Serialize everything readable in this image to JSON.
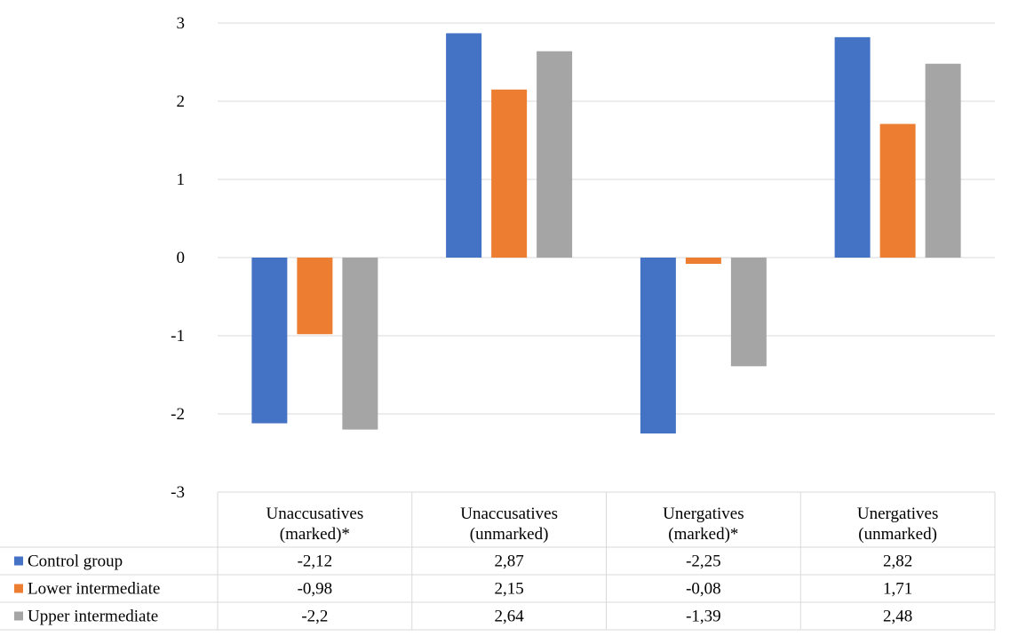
{
  "chart_data": {
    "type": "bar",
    "title": "",
    "xlabel": "",
    "ylabel": "",
    "ylim": [
      -3,
      3
    ],
    "yticks": [
      3,
      2,
      1,
      0,
      -1,
      -2,
      -3
    ],
    "grid": true,
    "legend": "data-table-left",
    "categories": [
      [
        "Unaccusatives",
        "(marked)*"
      ],
      [
        "Unaccusatives",
        "(unmarked)"
      ],
      [
        "Unergatives",
        "(marked)*"
      ],
      [
        "Unergatives",
        "(unmarked)"
      ]
    ],
    "series": [
      {
        "name": "Control group",
        "color": "#4472C4",
        "values": [
          -2.12,
          2.87,
          -2.25,
          2.82
        ],
        "labels": [
          "-2,12",
          "2,87",
          "-2,25",
          "2,82"
        ]
      },
      {
        "name": "Lower intermediate",
        "color": "#ED7D31",
        "values": [
          -0.98,
          2.15,
          -0.08,
          1.71
        ],
        "labels": [
          "-0,98",
          "2,15",
          "-0,08",
          "1,71"
        ]
      },
      {
        "name": "Upper intermediate",
        "color": "#A5A5A5",
        "values": [
          -2.2,
          2.64,
          -1.39,
          2.48
        ],
        "labels": [
          "-2,2",
          "2,64",
          "-1,39",
          "2,48"
        ]
      }
    ]
  }
}
